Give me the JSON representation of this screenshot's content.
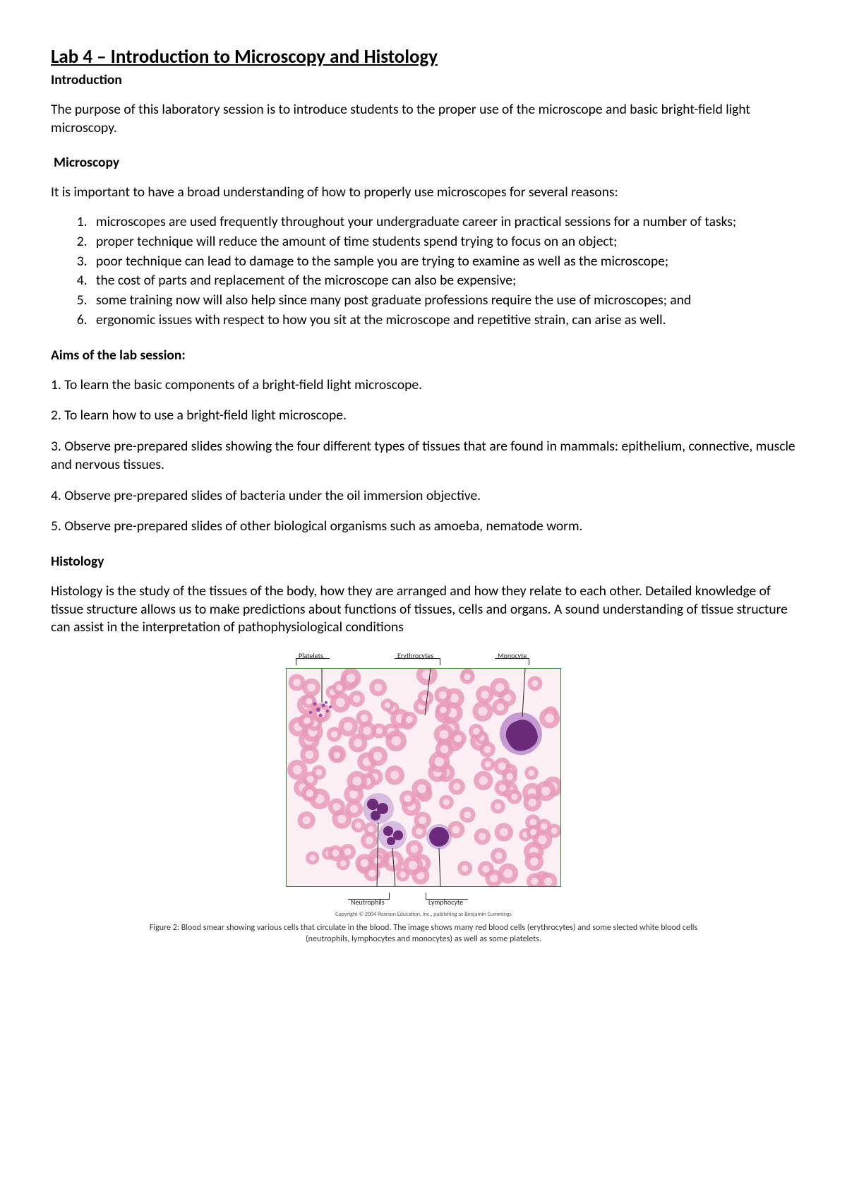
{
  "title": "Lab 4 – Introduction to Microscopy and Histology",
  "intro": {
    "heading": "Introduction",
    "text": "The purpose of this laboratory session is to introduce students to the proper use of the microscope and basic bright-field light microscopy."
  },
  "microscopy": {
    "heading": "Microscopy",
    "lead": "It is important to have a broad understanding of how to properly use microscopes for several reasons:",
    "items": [
      "microscopes are used frequently throughout your undergraduate career in practical sessions for a number of tasks;",
      "proper technique will reduce the amount of time students spend trying to focus on an object;",
      "poor technique can lead to damage to the sample you are trying to examine as well as the microscope;",
      "the cost of parts and replacement of the microscope can also be expensive;",
      "some training now will also help since many post graduate professions require the use of microscopes; and",
      "ergonomic issues with respect to how you sit at the microscope and repetitive strain, can arise as well."
    ]
  },
  "aims": {
    "heading": "Aims of the lab session:",
    "items": [
      "1. To learn the basic components of a bright-field light microscope.",
      "2. To learn how to use a bright-field light microscope.",
      "3. Observe pre-prepared slides showing the four different types of tissues that are found in mammals: epithelium, connective, muscle and nervous tissues.",
      "4. Observe pre-prepared slides of bacteria under the oil immersion objective.",
      "5. Observe pre-prepared slides of other biological organisms such as amoeba, nematode worm."
    ]
  },
  "histology": {
    "heading": "Histology",
    "text": "Histology is the study of the tissues of the body, how they are arranged and how they relate to each other. Detailed knowledge of tissue structure allows us to make predictions about functions of tissues, cells and organs. A sound understanding of tissue structure can assist in the interpretation of pathophysiological conditions"
  },
  "figure": {
    "labels": {
      "platelets": "Platelets",
      "erythrocytes": "Erythrocytes",
      "monocyte": "Monocyte",
      "neutrophils": "Neutrophils",
      "lymphocyte": "Lymphocyte"
    },
    "copyright": "Copyright © 2004 Pearson Education, Inc., publishing as Benjamin Cummings",
    "caption": "Figure 2: Blood smear showing various cells that circulate in the blood. The image shows many red blood cells (erythrocytes) and some slected white blood cells (neutrophils, lymphocytes and monocytes) as well as some platelets.",
    "colors": {
      "border": "#3a7d36",
      "background": "#fbeff4",
      "rbc_ring": "#e79ab8",
      "rbc_center": "#f7d9e6",
      "wbc_nucleus": "#6b2a7a",
      "wbc_cytoplasm": "#b27fc5",
      "platelet": "#9a4bab"
    }
  }
}
